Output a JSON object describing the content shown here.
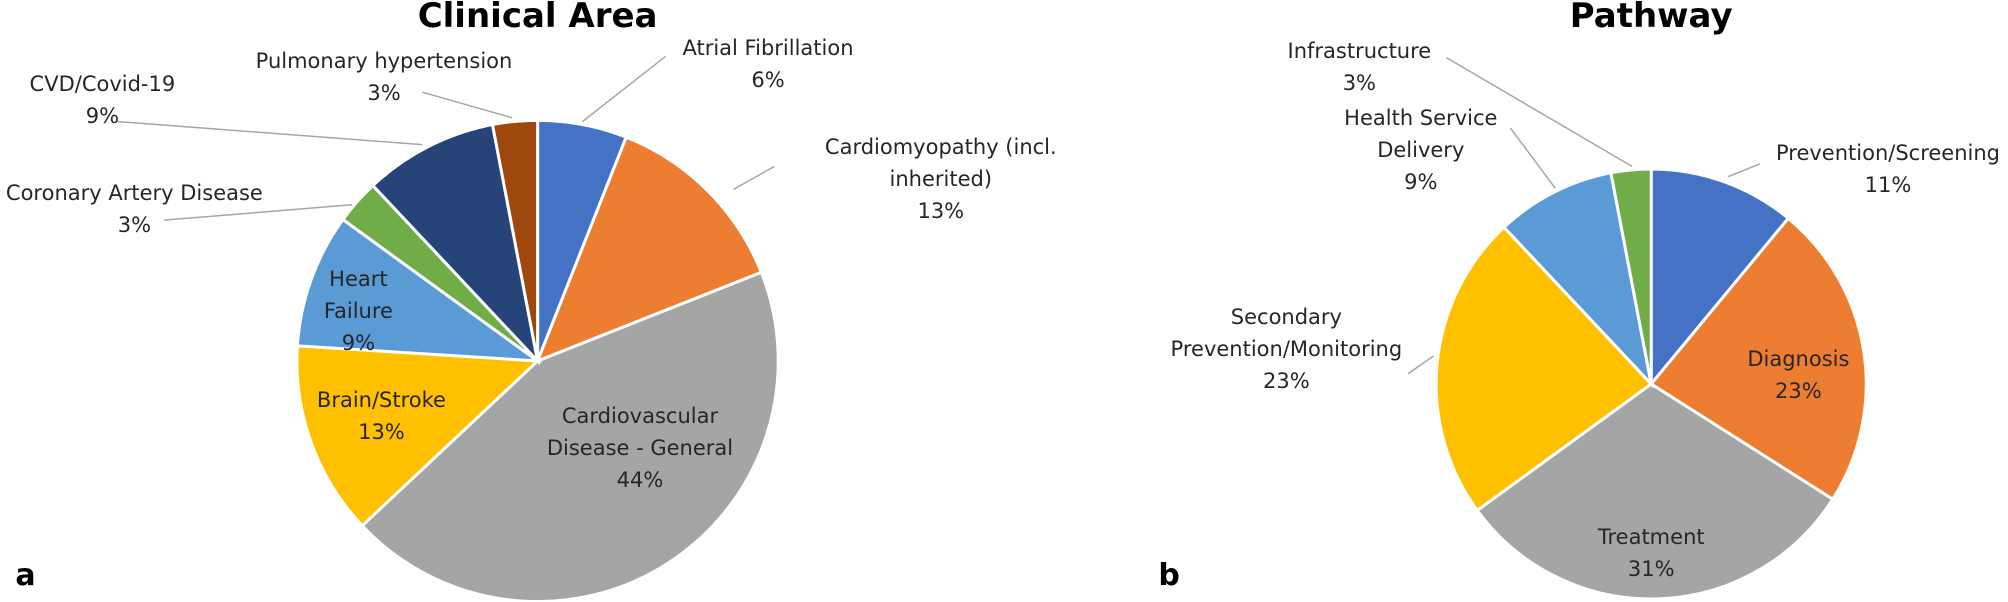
{
  "chart_data": [
    {
      "type": "pie",
      "title": "Clinical Area",
      "panel_label": "a",
      "categories": [
        "Atrial Fibrillation",
        "Cardiomyopathy (incl. inherited)",
        "Cardiovascular Disease - General",
        "Brain/Stroke",
        "Heart Failure",
        "Coronary Artery Disease",
        "CVD/Covid-19",
        "Pulmonary hypertension"
      ],
      "values": [
        6,
        13,
        44,
        13,
        9,
        3,
        9,
        3
      ],
      "value_labels": [
        "6%",
        "13%",
        "44%",
        "13%",
        "9%",
        "3%",
        "9%",
        "3%"
      ],
      "colors": [
        "#4472c4",
        "#ed7d31",
        "#a5a5a5",
        "#ffc000",
        "#5b9bd5",
        "#70ad47",
        "#264478",
        "#9e480e"
      ]
    },
    {
      "type": "pie",
      "title": "Pathway",
      "panel_label": "b",
      "categories": [
        "Prevention/Screening",
        "Diagnosis",
        "Treatment",
        "Secondary Prevention/Monitoring",
        "Health Service Delivery",
        "Infrastructure"
      ],
      "values": [
        11,
        23,
        31,
        23,
        9,
        3
      ],
      "value_labels": [
        "11%",
        "23%",
        "31%",
        "23%",
        "9%",
        "3%"
      ],
      "colors": [
        "#4472c4",
        "#ed7d31",
        "#a5a5a5",
        "#ffc000",
        "#5b9bd5",
        "#70ad47"
      ]
    }
  ]
}
